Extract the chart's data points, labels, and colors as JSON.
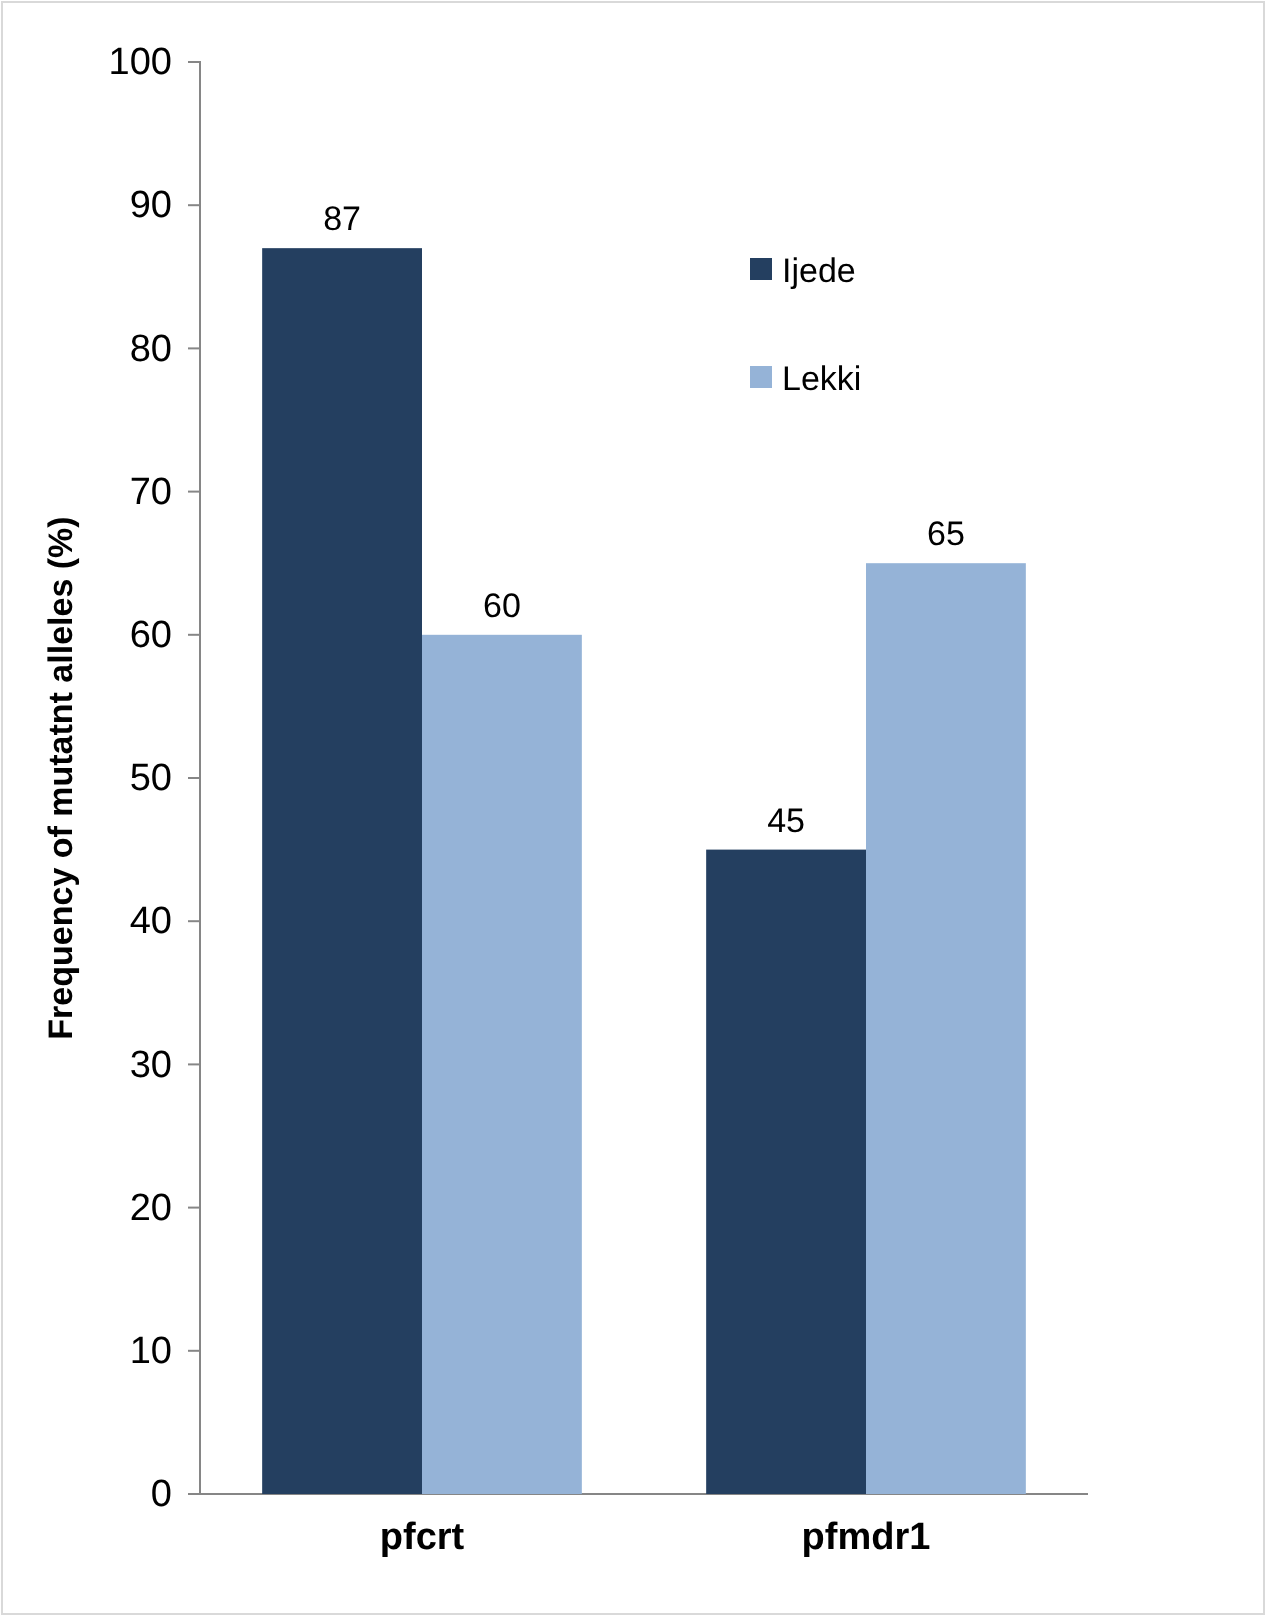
{
  "chart_data": {
    "type": "bar",
    "ylabel": "Frequency of mutatnt alleles (%)",
    "categories": [
      "pfcrt",
      "pfmdr1"
    ],
    "series": [
      {
        "name": "Ijede",
        "color": "#243f60",
        "values": [
          87,
          45
        ]
      },
      {
        "name": "Lekki",
        "color": "#95b3d7",
        "values": [
          60,
          65
        ]
      }
    ],
    "ylim": [
      0,
      100
    ],
    "yticks": [
      0,
      10,
      20,
      30,
      40,
      50,
      60,
      70,
      80,
      90,
      100
    ],
    "grid": false,
    "legend": "top right",
    "data_labels": true
  }
}
